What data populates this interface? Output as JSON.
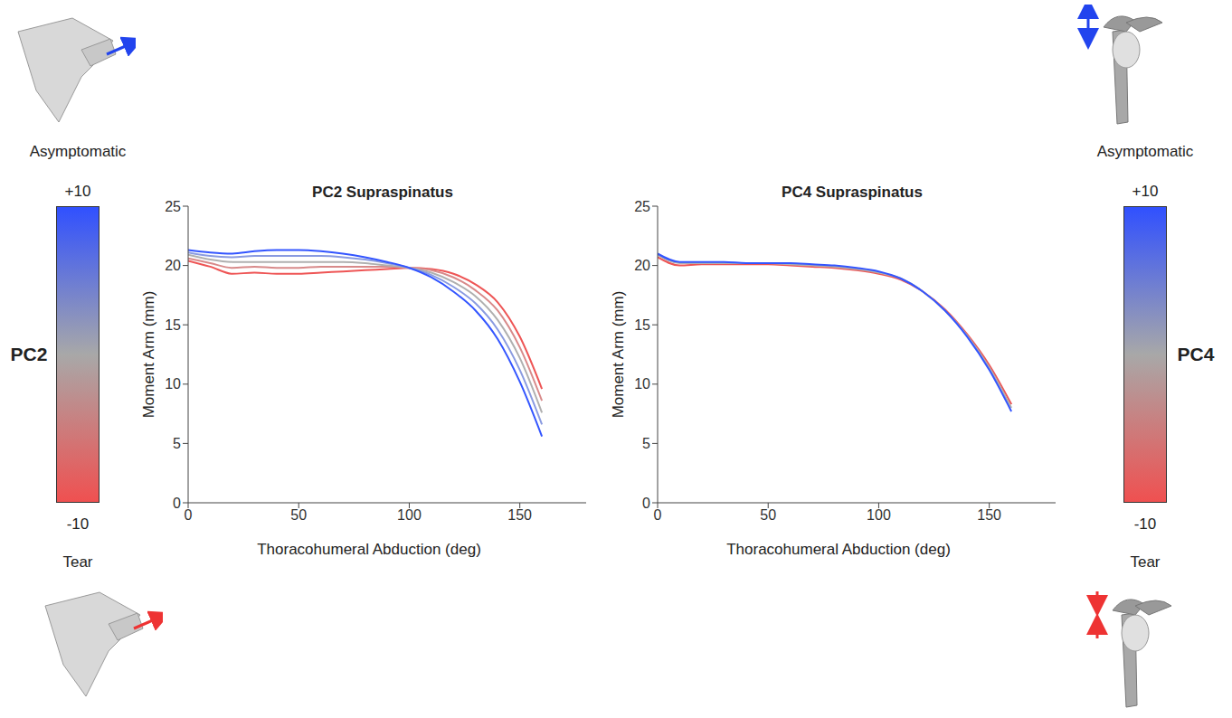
{
  "chart_data": [
    {
      "type": "line",
      "title": "PC2 Supraspinatus",
      "x_label": "Thoracohumeral Abduction (deg)",
      "y_label": "Moment Arm (mm)",
      "x": [
        0,
        10,
        20,
        30,
        40,
        50,
        60,
        70,
        80,
        90,
        100,
        110,
        120,
        130,
        140,
        150,
        160
      ],
      "series": [
        {
          "color": "#ee5555",
          "values": [
            20.4,
            19.9,
            19.3,
            19.4,
            19.3,
            19.3,
            19.4,
            19.5,
            19.6,
            19.7,
            19.8,
            19.7,
            19.3,
            18.4,
            16.9,
            14.0,
            9.6
          ]
        },
        {
          "color": "#d88a8a",
          "values": [
            20.6,
            20.2,
            19.8,
            19.9,
            19.8,
            19.8,
            19.9,
            19.9,
            19.9,
            19.9,
            19.8,
            19.6,
            19.0,
            17.9,
            16.2,
            13.1,
            8.6
          ]
        },
        {
          "color": "#b0b0b0",
          "values": [
            20.9,
            20.5,
            20.3,
            20.3,
            20.3,
            20.3,
            20.3,
            20.3,
            20.2,
            20.0,
            19.8,
            19.4,
            18.6,
            17.4,
            15.4,
            12.2,
            7.6
          ]
        },
        {
          "color": "#8a9be0",
          "values": [
            21.1,
            20.8,
            20.7,
            20.8,
            20.8,
            20.8,
            20.8,
            20.7,
            20.5,
            20.2,
            19.8,
            19.2,
            18.2,
            16.8,
            14.6,
            11.2,
            6.6
          ]
        },
        {
          "color": "#3355ff",
          "values": [
            21.3,
            21.1,
            21.0,
            21.2,
            21.3,
            21.3,
            21.2,
            21.0,
            20.7,
            20.3,
            19.8,
            19.0,
            17.8,
            16.2,
            13.8,
            10.2,
            5.6
          ]
        }
      ],
      "xlim": [
        0,
        180
      ],
      "xticks": [
        0,
        50,
        100,
        150
      ],
      "ylim": [
        0,
        25
      ],
      "yticks": [
        0,
        5,
        10,
        15,
        20,
        25
      ],
      "grid": false,
      "colorbar": {
        "label": "PC2",
        "range": [
          -10,
          10
        ],
        "ticks": [
          {
            "value": 10,
            "label": "+10"
          },
          {
            "value": -10,
            "label": "-10"
          }
        ],
        "colors": [
          "#f05050",
          "#a8a8a8",
          "#3050ff"
        ],
        "top_label": "Asymptomatic",
        "bottom_label": "Tear"
      }
    },
    {
      "type": "line",
      "title": "PC4 Supraspinatus",
      "x_label": "Thoracohumeral Abduction (deg)",
      "y_label": "Moment Arm (mm)",
      "x": [
        0,
        10,
        20,
        30,
        40,
        50,
        60,
        70,
        80,
        90,
        100,
        110,
        120,
        130,
        140,
        150,
        160
      ],
      "series": [
        {
          "color": "#ee5555",
          "values": [
            20.7,
            20.0,
            20.1,
            20.1,
            20.1,
            20.1,
            20.0,
            19.9,
            19.8,
            19.6,
            19.3,
            18.8,
            17.8,
            16.3,
            14.2,
            11.6,
            8.3
          ]
        },
        {
          "color": "#b0b0b0",
          "values": [
            20.9,
            20.2,
            20.2,
            20.2,
            20.2,
            20.2,
            20.1,
            20.0,
            19.9,
            19.7,
            19.4,
            18.9,
            17.8,
            16.2,
            14.1,
            11.4,
            8.0
          ]
        },
        {
          "color": "#3355ff",
          "values": [
            21.0,
            20.3,
            20.3,
            20.3,
            20.2,
            20.2,
            20.2,
            20.1,
            20.0,
            19.8,
            19.5,
            18.9,
            17.8,
            16.2,
            14.0,
            11.2,
            7.7
          ]
        }
      ],
      "xlim": [
        0,
        180
      ],
      "xticks": [
        0,
        50,
        100,
        150
      ],
      "ylim": [
        0,
        25
      ],
      "yticks": [
        0,
        5,
        10,
        15,
        20,
        25
      ],
      "grid": false,
      "colorbar": {
        "label": "PC4",
        "range": [
          -10,
          10
        ],
        "ticks": [
          {
            "value": 10,
            "label": "+10"
          },
          {
            "value": -10,
            "label": "-10"
          }
        ],
        "colors": [
          "#f05050",
          "#a8a8a8",
          "#3050ff"
        ],
        "top_label": "Asymptomatic",
        "bottom_label": "Tear"
      }
    }
  ]
}
